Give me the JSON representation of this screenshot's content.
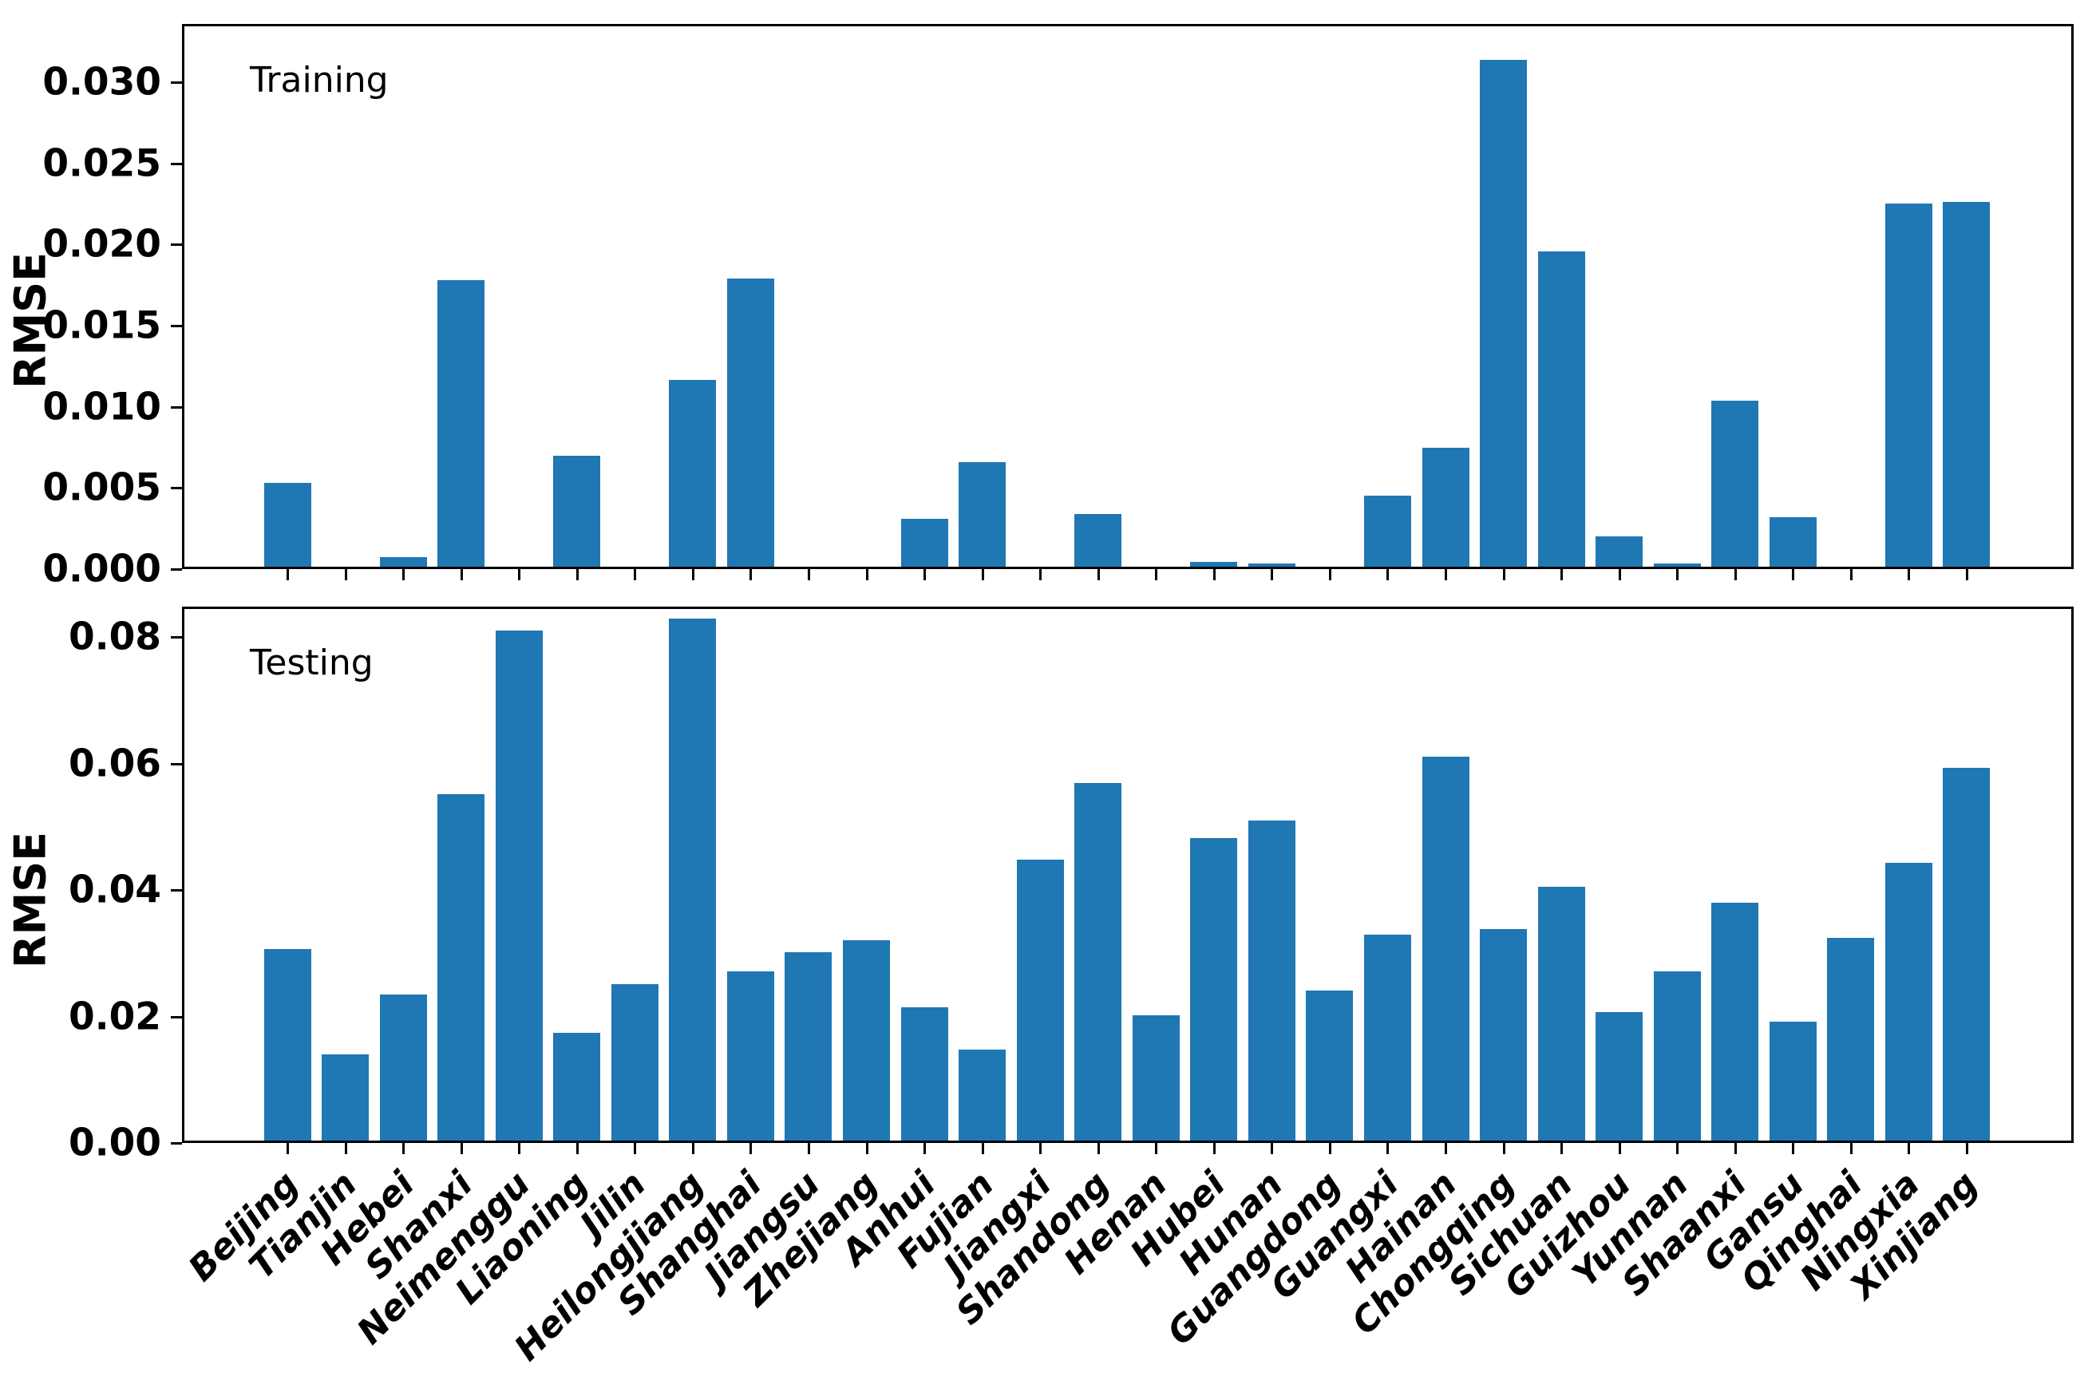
{
  "figure": {
    "bar_color": "#1f77b4",
    "axis_color": "#000000",
    "background_color": "#ffffff"
  },
  "chart_data": [
    {
      "type": "bar",
      "panel": "top",
      "annotation": "Training",
      "ylabel": "RMSE",
      "grid": false,
      "legend_position": "none",
      "ylim": [
        0,
        0.0336
      ],
      "ytick_values": [
        0.0,
        0.005,
        0.01,
        0.015,
        0.02,
        0.025,
        0.03
      ],
      "ytick_labels": [
        "0.000",
        "0.005",
        "0.010",
        "0.015",
        "0.020",
        "0.025",
        "0.030"
      ],
      "show_x_labels": false,
      "categories": [
        "Beijing",
        "Tianjin",
        "Hebei",
        "Shanxi",
        "Neimenggu",
        "Liaoning",
        "Jilin",
        "Heilongjiang",
        "Shanghai",
        "Jiangsu",
        "Zhejiang",
        "Anhui",
        "Fujian",
        "Jiangxi",
        "Shandong",
        "Henan",
        "Hubei",
        "Hunan",
        "Guangdong",
        "Guangxi",
        "Hainan",
        "Chongqing",
        "Sichuan",
        "Guizhou",
        "Yunnan",
        "Shaanxi",
        "Gansu",
        "Qinghai",
        "Ningxia",
        "Xinjiang"
      ],
      "values": [
        0.0052,
        0,
        0.0006,
        0.0178,
        0,
        0.0069,
        0,
        0.0116,
        0.0179,
        0,
        0,
        0.003,
        0.0065,
        0,
        0.0033,
        0,
        0.0003,
        0.0002,
        0,
        0.0044,
        0.0074,
        0.0315,
        0.0196,
        0.0019,
        0.0002,
        0.0103,
        0.0031,
        0,
        0.0226,
        0.0227
      ]
    },
    {
      "type": "bar",
      "panel": "bottom",
      "annotation": "Testing",
      "ylabel": "RMSE",
      "grid": false,
      "legend_position": "none",
      "ylim": [
        0,
        0.0848
      ],
      "ytick_values": [
        0.0,
        0.02,
        0.04,
        0.06,
        0.08
      ],
      "ytick_labels": [
        "0.00",
        "0.02",
        "0.04",
        "0.06",
        "0.08"
      ],
      "show_x_labels": true,
      "categories": [
        "Beijing",
        "Tianjin",
        "Hebei",
        "Shanxi",
        "Neimenggu",
        "Liaoning",
        "Jilin",
        "Heilongjiang",
        "Shanghai",
        "Jiangsu",
        "Zhejiang",
        "Anhui",
        "Fujian",
        "Jiangxi",
        "Shandong",
        "Henan",
        "Hubei",
        "Hunan",
        "Guangdong",
        "Guangxi",
        "Hainan",
        "Chongqing",
        "Sichuan",
        "Guizhou",
        "Yunnan",
        "Shaanxi",
        "Gansu",
        "Qinghai",
        "Ningxia",
        "Xinjiang"
      ],
      "values": [
        0.0305,
        0.0138,
        0.0233,
        0.0553,
        0.0813,
        0.0172,
        0.025,
        0.0833,
        0.027,
        0.03,
        0.032,
        0.0212,
        0.0145,
        0.0448,
        0.057,
        0.02,
        0.0483,
        0.051,
        0.024,
        0.0328,
        0.0613,
        0.0338,
        0.0405,
        0.0205,
        0.027,
        0.038,
        0.019,
        0.0323,
        0.0443,
        0.0595
      ]
    }
  ]
}
